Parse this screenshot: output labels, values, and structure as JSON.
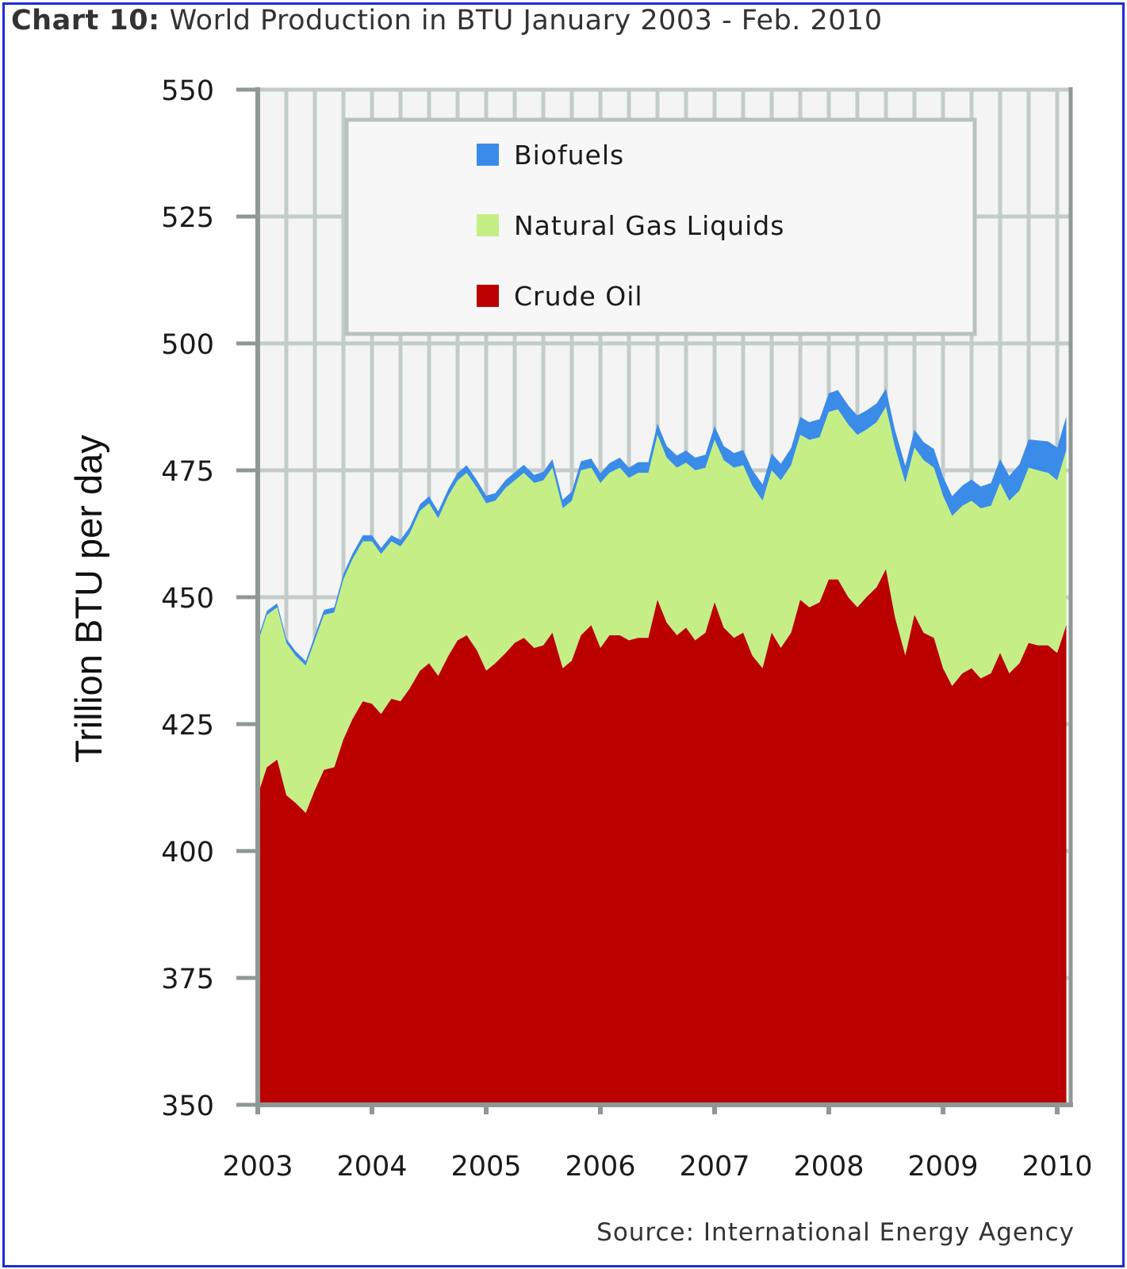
{
  "title": {
    "prefix": "Chart 10:",
    "text": "World Production in BTU January 2003 - Feb. 2010"
  },
  "source": "Source: International Energy Agency",
  "colors": {
    "crude": "#bb0000",
    "ngl": "#c5ef86",
    "bio": "#3a8ce8",
    "grid": "#c4ccca",
    "plot_bg": "#f4f4f4",
    "axis": "#8f9895"
  },
  "chart_data": {
    "type": "area",
    "stacked": true,
    "title": "World Production in BTU January 2003 - Feb. 2010",
    "xlabel": "",
    "ylabel": "Trillion BTU per day",
    "ylim": [
      350,
      550
    ],
    "xlim": [
      2003.0,
      2010.14
    ],
    "yticks": [
      350,
      375,
      400,
      425,
      450,
      475,
      500,
      525,
      550
    ],
    "xticks": [
      2003,
      2004,
      2005,
      2006,
      2007,
      2008,
      2009,
      2010
    ],
    "grid": true,
    "legend_position": "top",
    "series": [
      {
        "name": "Crude Oil",
        "color": "#bb0000",
        "points": [
          [
            2003.0,
            411.0
          ],
          [
            2003.08,
            416.5
          ],
          [
            2003.17,
            418.0
          ],
          [
            2003.25,
            411.0
          ],
          [
            2003.33,
            409.5
          ],
          [
            2003.42,
            407.5
          ],
          [
            2003.5,
            412.0
          ],
          [
            2003.58,
            416.0
          ],
          [
            2003.67,
            416.5
          ],
          [
            2003.75,
            422.0
          ],
          [
            2003.83,
            426.0
          ],
          [
            2003.92,
            429.5
          ],
          [
            2004.0,
            429.0
          ],
          [
            2004.08,
            427.0
          ],
          [
            2004.17,
            430.0
          ],
          [
            2004.25,
            429.5
          ],
          [
            2004.33,
            432.0
          ],
          [
            2004.42,
            435.5
          ],
          [
            2004.5,
            437.0
          ],
          [
            2004.58,
            434.5
          ],
          [
            2004.67,
            438.5
          ],
          [
            2004.75,
            441.5
          ],
          [
            2004.83,
            442.5
          ],
          [
            2004.92,
            439.5
          ],
          [
            2005.0,
            435.5
          ],
          [
            2005.08,
            437.0
          ],
          [
            2005.17,
            439.0
          ],
          [
            2005.25,
            441.0
          ],
          [
            2005.33,
            442.0
          ],
          [
            2005.42,
            440.0
          ],
          [
            2005.5,
            440.5
          ],
          [
            2005.58,
            443.0
          ],
          [
            2005.67,
            436.0
          ],
          [
            2005.75,
            437.5
          ],
          [
            2005.83,
            442.5
          ],
          [
            2005.92,
            444.5
          ],
          [
            2006.0,
            440.0
          ],
          [
            2006.08,
            442.5
          ],
          [
            2006.17,
            442.5
          ],
          [
            2006.25,
            441.5
          ],
          [
            2006.33,
            442.0
          ],
          [
            2006.42,
            442.0
          ],
          [
            2006.5,
            449.5
          ],
          [
            2006.58,
            445.0
          ],
          [
            2006.67,
            442.5
          ],
          [
            2006.75,
            444.0
          ],
          [
            2006.83,
            441.5
          ],
          [
            2006.92,
            443.0
          ],
          [
            2007.0,
            449.0
          ],
          [
            2007.08,
            444.0
          ],
          [
            2007.17,
            442.0
          ],
          [
            2007.25,
            443.0
          ],
          [
            2007.33,
            438.5
          ],
          [
            2007.42,
            436.0
          ],
          [
            2007.5,
            443.0
          ],
          [
            2007.58,
            440.0
          ],
          [
            2007.67,
            443.0
          ],
          [
            2007.75,
            449.5
          ],
          [
            2007.83,
            448.0
          ],
          [
            2007.92,
            449.0
          ],
          [
            2008.0,
            453.5
          ],
          [
            2008.08,
            453.5
          ],
          [
            2008.17,
            450.0
          ],
          [
            2008.25,
            448.0
          ],
          [
            2008.33,
            450.0
          ],
          [
            2008.42,
            452.0
          ],
          [
            2008.5,
            455.5
          ],
          [
            2008.58,
            446.0
          ],
          [
            2008.67,
            438.5
          ],
          [
            2008.75,
            446.5
          ],
          [
            2008.83,
            443.0
          ],
          [
            2008.92,
            442.0
          ],
          [
            2009.0,
            436.0
          ],
          [
            2009.08,
            432.5
          ],
          [
            2009.17,
            435.0
          ],
          [
            2009.25,
            436.0
          ],
          [
            2009.33,
            434.0
          ],
          [
            2009.42,
            435.0
          ],
          [
            2009.5,
            439.0
          ],
          [
            2009.58,
            435.0
          ],
          [
            2009.67,
            437.0
          ],
          [
            2009.75,
            441.0
          ],
          [
            2009.83,
            440.5
          ],
          [
            2009.92,
            440.5
          ],
          [
            2010.0,
            439.0
          ],
          [
            2010.08,
            444.5
          ]
        ]
      },
      {
        "name": "Natural Gas Liquids",
        "color": "#c5ef86",
        "points": [
          [
            2003.0,
            30.0
          ],
          [
            2003.08,
            30.0
          ],
          [
            2003.17,
            30.0
          ],
          [
            2003.25,
            30.0
          ],
          [
            2003.33,
            29.0
          ],
          [
            2003.42,
            29.0
          ],
          [
            2003.5,
            29.5
          ],
          [
            2003.58,
            30.5
          ],
          [
            2003.67,
            30.5
          ],
          [
            2003.75,
            31.5
          ],
          [
            2003.83,
            31.5
          ],
          [
            2003.92,
            31.5
          ],
          [
            2004.0,
            32.0
          ],
          [
            2004.08,
            31.5
          ],
          [
            2004.17,
            31.0
          ],
          [
            2004.25,
            30.5
          ],
          [
            2004.33,
            30.5
          ],
          [
            2004.42,
            31.5
          ],
          [
            2004.5,
            31.5
          ],
          [
            2004.58,
            31.0
          ],
          [
            2004.67,
            31.5
          ],
          [
            2004.75,
            31.5
          ],
          [
            2004.83,
            32.0
          ],
          [
            2004.92,
            32.0
          ],
          [
            2005.0,
            33.0
          ],
          [
            2005.08,
            32.0
          ],
          [
            2005.17,
            32.5
          ],
          [
            2005.25,
            32.0
          ],
          [
            2005.33,
            32.5
          ],
          [
            2005.42,
            32.5
          ],
          [
            2005.5,
            32.5
          ],
          [
            2005.58,
            32.5
          ],
          [
            2005.67,
            31.5
          ],
          [
            2005.75,
            31.5
          ],
          [
            2005.83,
            32.5
          ],
          [
            2005.92,
            31.0
          ],
          [
            2006.0,
            32.5
          ],
          [
            2006.08,
            32.0
          ],
          [
            2006.17,
            33.0
          ],
          [
            2006.25,
            32.0
          ],
          [
            2006.33,
            32.5
          ],
          [
            2006.42,
            32.5
          ],
          [
            2006.5,
            32.5
          ],
          [
            2006.58,
            32.5
          ],
          [
            2006.67,
            33.0
          ],
          [
            2006.75,
            32.5
          ],
          [
            2006.83,
            33.5
          ],
          [
            2006.92,
            32.5
          ],
          [
            2007.0,
            32.0
          ],
          [
            2007.08,
            33.0
          ],
          [
            2007.17,
            33.5
          ],
          [
            2007.25,
            33.0
          ],
          [
            2007.33,
            33.5
          ],
          [
            2007.42,
            33.0
          ],
          [
            2007.5,
            32.0
          ],
          [
            2007.58,
            33.0
          ],
          [
            2007.67,
            33.0
          ],
          [
            2007.75,
            32.5
          ],
          [
            2007.83,
            33.0
          ],
          [
            2007.92,
            32.5
          ],
          [
            2008.0,
            33.0
          ],
          [
            2008.08,
            33.5
          ],
          [
            2008.17,
            34.0
          ],
          [
            2008.25,
            34.0
          ],
          [
            2008.33,
            33.0
          ],
          [
            2008.42,
            32.5
          ],
          [
            2008.5,
            32.0
          ],
          [
            2008.58,
            33.5
          ],
          [
            2008.67,
            34.0
          ],
          [
            2008.75,
            33.0
          ],
          [
            2008.83,
            34.0
          ],
          [
            2008.92,
            33.5
          ],
          [
            2009.0,
            34.0
          ],
          [
            2009.08,
            33.5
          ],
          [
            2009.17,
            33.0
          ],
          [
            2009.25,
            33.0
          ],
          [
            2009.33,
            33.5
          ],
          [
            2009.42,
            33.0
          ],
          [
            2009.5,
            33.5
          ],
          [
            2009.58,
            34.0
          ],
          [
            2009.67,
            34.0
          ],
          [
            2009.75,
            34.5
          ],
          [
            2009.83,
            34.5
          ],
          [
            2009.92,
            34.0
          ],
          [
            2010.0,
            34.0
          ],
          [
            2010.08,
            34.5
          ]
        ]
      },
      {
        "name": "Biofuels",
        "color": "#3a8ce8",
        "points": [
          [
            2003.0,
            0.8
          ],
          [
            2003.08,
            0.8
          ],
          [
            2003.17,
            0.8
          ],
          [
            2003.25,
            0.8
          ],
          [
            2003.33,
            0.9
          ],
          [
            2003.42,
            0.9
          ],
          [
            2003.5,
            1.0
          ],
          [
            2003.58,
            1.0
          ],
          [
            2003.67,
            1.0
          ],
          [
            2003.75,
            1.1
          ],
          [
            2003.83,
            1.1
          ],
          [
            2003.92,
            1.2
          ],
          [
            2004.0,
            1.2
          ],
          [
            2004.08,
            1.2
          ],
          [
            2004.17,
            1.2
          ],
          [
            2004.25,
            1.3
          ],
          [
            2004.33,
            1.3
          ],
          [
            2004.42,
            1.3
          ],
          [
            2004.5,
            1.4
          ],
          [
            2004.58,
            1.4
          ],
          [
            2004.67,
            1.4
          ],
          [
            2004.75,
            1.5
          ],
          [
            2004.83,
            1.5
          ],
          [
            2004.92,
            1.5
          ],
          [
            2005.0,
            1.5
          ],
          [
            2005.08,
            1.5
          ],
          [
            2005.17,
            1.6
          ],
          [
            2005.25,
            1.6
          ],
          [
            2005.33,
            1.6
          ],
          [
            2005.42,
            1.6
          ],
          [
            2005.5,
            1.7
          ],
          [
            2005.58,
            1.7
          ],
          [
            2005.67,
            1.7
          ],
          [
            2005.75,
            1.8
          ],
          [
            2005.83,
            1.8
          ],
          [
            2005.92,
            1.8
          ],
          [
            2006.0,
            1.9
          ],
          [
            2006.08,
            1.9
          ],
          [
            2006.17,
            2.0
          ],
          [
            2006.25,
            2.0
          ],
          [
            2006.33,
            2.1
          ],
          [
            2006.42,
            2.1
          ],
          [
            2006.5,
            2.2
          ],
          [
            2006.58,
            2.3
          ],
          [
            2006.67,
            2.4
          ],
          [
            2006.75,
            2.4
          ],
          [
            2006.83,
            2.5
          ],
          [
            2006.92,
            2.6
          ],
          [
            2007.0,
            2.7
          ],
          [
            2007.08,
            2.8
          ],
          [
            2007.17,
            2.9
          ],
          [
            2007.25,
            3.0
          ],
          [
            2007.33,
            3.1
          ],
          [
            2007.42,
            3.2
          ],
          [
            2007.5,
            3.3
          ],
          [
            2007.58,
            3.3
          ],
          [
            2007.67,
            3.4
          ],
          [
            2007.75,
            3.5
          ],
          [
            2007.83,
            3.5
          ],
          [
            2007.92,
            3.6
          ],
          [
            2008.0,
            3.7
          ],
          [
            2008.08,
            3.8
          ],
          [
            2008.17,
            3.8
          ],
          [
            2008.25,
            3.8
          ],
          [
            2008.33,
            3.8
          ],
          [
            2008.42,
            3.7
          ],
          [
            2008.5,
            3.6
          ],
          [
            2008.58,
            3.4
          ],
          [
            2008.67,
            3.4
          ],
          [
            2008.75,
            3.5
          ],
          [
            2008.83,
            3.6
          ],
          [
            2008.92,
            3.7
          ],
          [
            2009.0,
            3.8
          ],
          [
            2009.08,
            3.9
          ],
          [
            2009.17,
            4.0
          ],
          [
            2009.25,
            4.2
          ],
          [
            2009.33,
            4.3
          ],
          [
            2009.42,
            4.5
          ],
          [
            2009.5,
            4.7
          ],
          [
            2009.58,
            4.9
          ],
          [
            2009.67,
            5.2
          ],
          [
            2009.75,
            5.6
          ],
          [
            2009.83,
            5.9
          ],
          [
            2009.92,
            6.2
          ],
          [
            2010.0,
            6.5
          ],
          [
            2010.08,
            6.6
          ]
        ]
      }
    ]
  }
}
